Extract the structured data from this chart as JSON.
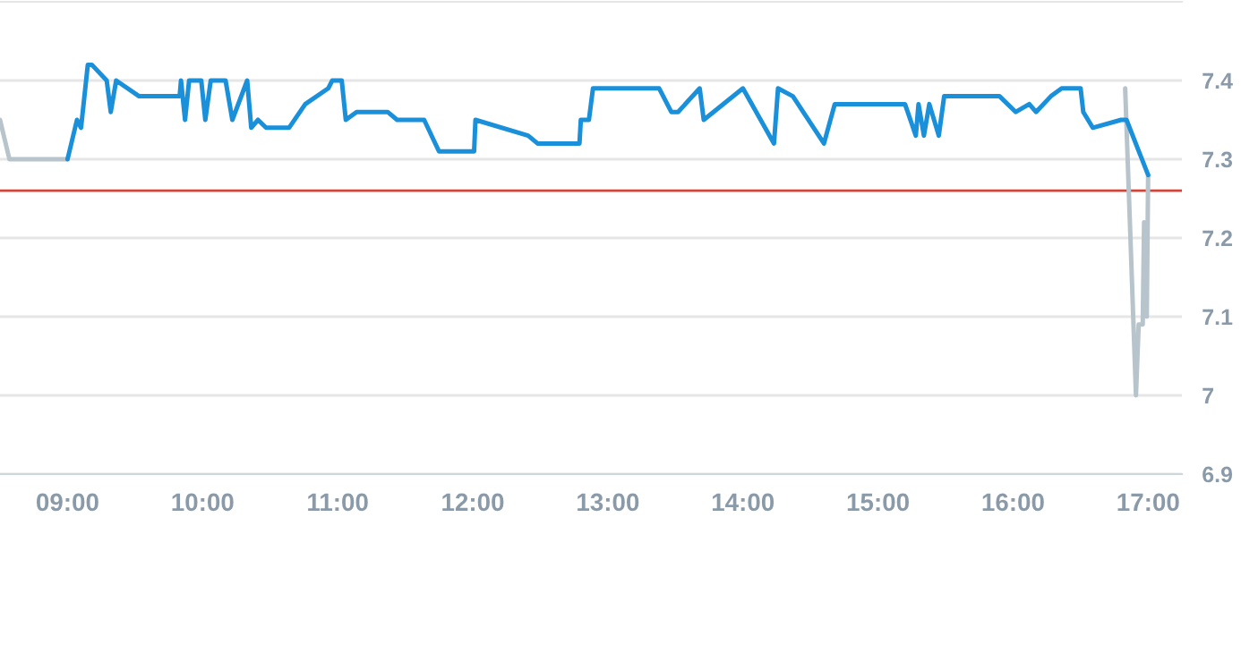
{
  "chart_data": {
    "type": "line",
    "series": [
      {
        "color": "#b8c4cc",
        "x": [
          8.5,
          8.57,
          9.0
        ],
        "values": [
          7.35,
          7.3,
          7.3
        ]
      },
      {
        "color": "#b8c4cc",
        "x": [
          16.83,
          16.91,
          16.93,
          16.96,
          16.97,
          16.99,
          17.0
        ],
        "values": [
          7.39,
          7.0,
          7.09,
          7.09,
          7.22,
          7.1,
          7.28
        ]
      },
      {
        "color": "#1a90db",
        "x": [
          9.0,
          9.07,
          9.1,
          9.15,
          9.18,
          9.29,
          9.32,
          9.36,
          9.53,
          9.83,
          9.84,
          9.87,
          9.9,
          9.99,
          10.02,
          10.06,
          10.17,
          10.22,
          10.33,
          10.36,
          10.41,
          10.47,
          10.64,
          10.76,
          10.93,
          10.96,
          11.03,
          11.06,
          11.14,
          11.37,
          11.44,
          11.64,
          11.75,
          12.01,
          12.02,
          12.41,
          12.48,
          12.79,
          12.8,
          12.86,
          12.89,
          13.12,
          13.38,
          13.47,
          13.52,
          13.68,
          13.71,
          14.0,
          14.23,
          14.26,
          14.37,
          14.6,
          14.68,
          15.2,
          15.28,
          15.3,
          15.34,
          15.38,
          15.45,
          15.49,
          15.9,
          16.02,
          16.12,
          16.17,
          16.28,
          16.36,
          16.5,
          16.52,
          16.59,
          16.8,
          16.84,
          17.0
        ],
        "values": [
          7.3,
          7.35,
          7.34,
          7.42,
          7.42,
          7.4,
          7.36,
          7.4,
          7.38,
          7.38,
          7.4,
          7.35,
          7.4,
          7.4,
          7.35,
          7.4,
          7.4,
          7.35,
          7.4,
          7.34,
          7.35,
          7.34,
          7.34,
          7.37,
          7.39,
          7.4,
          7.4,
          7.35,
          7.36,
          7.36,
          7.35,
          7.35,
          7.31,
          7.31,
          7.35,
          7.33,
          7.32,
          7.32,
          7.35,
          7.35,
          7.39,
          7.39,
          7.39,
          7.36,
          7.36,
          7.39,
          7.35,
          7.39,
          7.32,
          7.39,
          7.38,
          7.32,
          7.37,
          7.37,
          7.33,
          7.37,
          7.33,
          7.37,
          7.33,
          7.38,
          7.38,
          7.36,
          7.37,
          7.36,
          7.38,
          7.39,
          7.39,
          7.36,
          7.34,
          7.35,
          7.35,
          7.28
        ]
      }
    ],
    "xlim": [
      8.5,
      17.25
    ],
    "xticks": [
      {
        "value": 9,
        "label": "09:00"
      },
      {
        "value": 10,
        "label": "10:00"
      },
      {
        "value": 11,
        "label": "11:00"
      },
      {
        "value": 12,
        "label": "12:00"
      },
      {
        "value": 13,
        "label": "13:00"
      },
      {
        "value": 14,
        "label": "14:00"
      },
      {
        "value": 15,
        "label": "15:00"
      },
      {
        "value": 16,
        "label": "16:00"
      },
      {
        "value": 17,
        "label": "17:00"
      }
    ],
    "ylim": [
      6.9,
      7.5
    ],
    "yticks": [
      6.9,
      7,
      7.1,
      7.2,
      7.3,
      7.4
    ],
    "ref_lines": [
      {
        "axis": "y",
        "value": 7.26,
        "color": "#d0453a"
      }
    ],
    "grid": "y",
    "legend": false,
    "marker": "none",
    "line_style": "solid"
  }
}
